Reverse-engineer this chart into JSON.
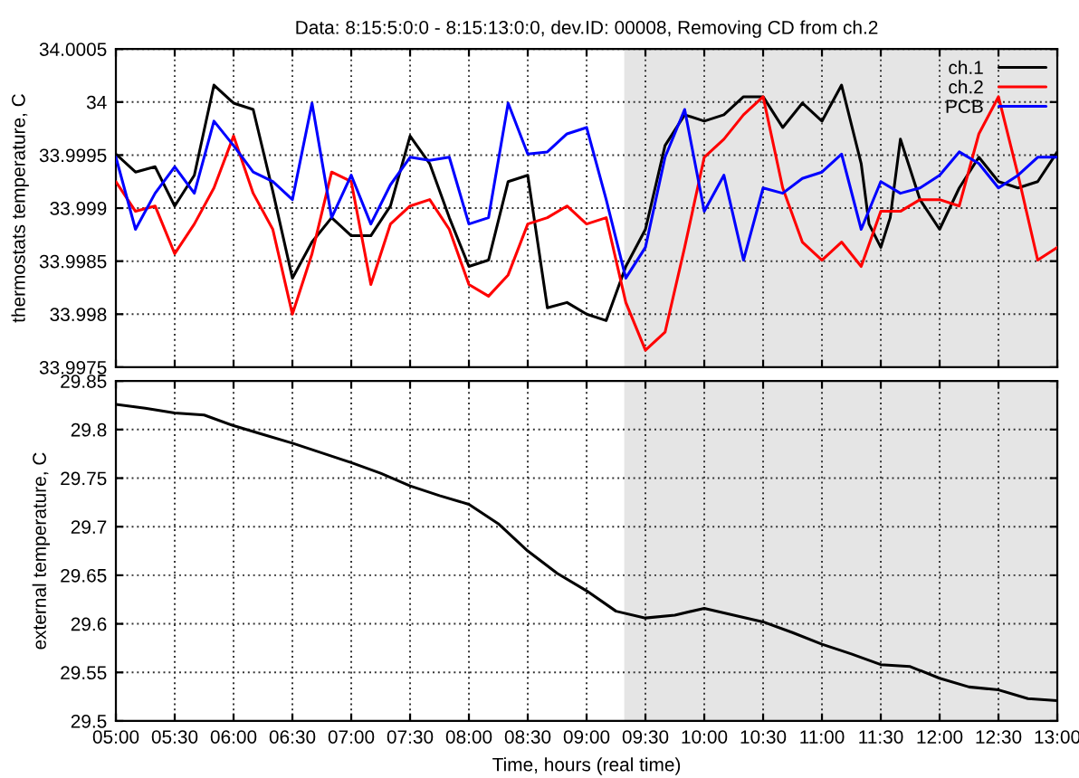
{
  "chart_data": [
    {
      "type": "line",
      "title": "Data: 8:15:5:0:0 - 8:15:13:0:0, dev.ID: 00008, Removing CD from ch.2",
      "ylabel": "thermostats temperature, C",
      "x": [
        5,
        5.16667,
        5.33333,
        5.5,
        5.66667,
        5.83333,
        6,
        6.16667,
        6.33333,
        6.5,
        6.66667,
        6.83333,
        7,
        7.16667,
        7.33333,
        7.5,
        7.66667,
        7.83333,
        8,
        8.16667,
        8.33333,
        8.5,
        8.66667,
        8.83333,
        9,
        9.16667,
        9.33333,
        9.5,
        9.66667,
        9.83333,
        10,
        10.16667,
        10.33333,
        10.5,
        10.66667,
        10.83333,
        11,
        11.16667,
        11.33333,
        11.5,
        11.66667,
        11.83333,
        12,
        12.16667,
        12.33333,
        12.5,
        12.66667,
        12.83333,
        13
      ],
      "series": [
        {
          "name": "ch.1",
          "color": "#000000",
          "x": [
            5,
            5.16667,
            5.33333,
            5.5,
            5.66667,
            5.83333,
            6,
            6.16667,
            6.33333,
            6.5,
            6.66667,
            6.83333,
            7,
            7.16667,
            7.33333,
            7.5,
            7.66667,
            7.83333,
            8,
            8.16667,
            8.33333,
            8.5,
            8.66667,
            8.83333,
            9,
            9.16667,
            9.33333,
            9.5,
            9.66667,
            9.83333,
            10,
            10.16667,
            10.33333,
            10.5,
            10.66667,
            10.83333,
            11,
            11.16667,
            11.33333,
            11.4,
            11.5,
            11.58,
            11.66667,
            11.83333,
            12,
            12.16667,
            12.33333,
            12.5,
            12.66667,
            12.83333,
            13
          ],
          "values": [
            33.99951,
            33.99934,
            33.99939,
            33.99902,
            33.99931,
            34.00016,
            33.99999,
            33.99993,
            33.99916,
            33.99834,
            33.99868,
            33.99891,
            33.99874,
            33.99874,
            33.99902,
            33.99968,
            33.99942,
            33.99891,
            33.99845,
            33.99851,
            33.99925,
            33.99931,
            33.99806,
            33.99811,
            33.998,
            33.99794,
            33.99845,
            33.9988,
            33.99959,
            33.99988,
            33.99982,
            33.99988,
            34.00005,
            34.00005,
            33.99976,
            33.99999,
            33.99982,
            34.00016,
            33.99942,
            33.99885,
            33.99863,
            33.99891,
            33.99965,
            33.99908,
            33.9988,
            33.99919,
            33.99948,
            33.99925,
            33.99919,
            33.99925,
            33.99953
          ]
        },
        {
          "name": "ch.2",
          "color": "#ff0000",
          "values": [
            33.99925,
            33.99897,
            33.99902,
            33.99857,
            33.99885,
            33.99919,
            33.99968,
            33.99914,
            33.9988,
            33.998,
            33.99857,
            33.99934,
            33.99925,
            33.99828,
            33.99885,
            33.99902,
            33.99908,
            33.9988,
            33.99828,
            33.99817,
            33.99837,
            33.99885,
            33.99891,
            33.99902,
            33.99885,
            33.99891,
            33.99811,
            33.99766,
            33.99783,
            33.99863,
            33.99948,
            33.99965,
            33.99988,
            34.00005,
            33.99919,
            33.99868,
            33.99851,
            33.99868,
            33.99845,
            33.99897,
            33.99897,
            33.99908,
            33.99908,
            33.99902,
            33.9997,
            34.00005,
            33.99931,
            33.99851,
            33.99863
          ]
        },
        {
          "name": "PCB",
          "color": "#0000ff",
          "values": [
            33.99948,
            33.9988,
            33.99914,
            33.99939,
            33.99914,
            33.99982,
            33.99959,
            33.99934,
            33.99925,
            33.99908,
            33.99999,
            33.99891,
            33.99931,
            33.99885,
            33.99922,
            33.99948,
            33.99945,
            33.99948,
            33.99885,
            33.99891,
            33.99999,
            33.99951,
            33.99953,
            33.9997,
            33.99976,
            33.99908,
            33.99834,
            33.99863,
            33.99948,
            33.99993,
            33.99897,
            33.99931,
            33.99851,
            33.99919,
            33.99914,
            33.99928,
            33.99934,
            33.99951,
            33.9988,
            33.99925,
            33.99914,
            33.99919,
            33.99931,
            33.99953,
            33.99942,
            33.99919,
            33.99931,
            33.99948,
            33.99948
          ]
        }
      ],
      "xlim": [
        5,
        13
      ],
      "xticks": [
        {
          "value": 5,
          "label": null
        },
        {
          "value": 5.5,
          "label": null
        },
        {
          "value": 6,
          "label": null
        },
        {
          "value": 6.5,
          "label": null
        },
        {
          "value": 7,
          "label": null
        },
        {
          "value": 7.5,
          "label": null
        },
        {
          "value": 8,
          "label": null
        },
        {
          "value": 8.5,
          "label": null
        },
        {
          "value": 9,
          "label": null
        },
        {
          "value": 9.5,
          "label": null
        },
        {
          "value": 10,
          "label": null
        },
        {
          "value": 10.5,
          "label": null
        },
        {
          "value": 11,
          "label": null
        },
        {
          "value": 11.5,
          "label": null
        },
        {
          "value": 12,
          "label": null
        },
        {
          "value": 12.5,
          "label": null
        },
        {
          "value": 13,
          "label": null
        }
      ],
      "ylim": [
        33.9975,
        34.0005
      ],
      "yticks": [
        33.9975,
        33.998,
        33.9985,
        33.999,
        33.9995,
        34,
        34.0005
      ],
      "bands": [
        {
          "axis": "x",
          "from": 9.32,
          "to": 13,
          "color": "#e5e5e5"
        }
      ],
      "tick_labels": "y",
      "grid": true,
      "legend": "top right",
      "line_style": "solid",
      "marker": "none"
    },
    {
      "type": "line",
      "xlabel": "Time, hours (real time)",
      "ylabel": "external temperature, C",
      "x": [
        5,
        5.25,
        5.5,
        5.75,
        6,
        6.25,
        6.5,
        6.75,
        7,
        7.25,
        7.5,
        7.75,
        8,
        8.25,
        8.5,
        8.75,
        9,
        9.25,
        9.5,
        9.75,
        10,
        10.25,
        10.5,
        10.75,
        11,
        11.25,
        11.5,
        11.75,
        12,
        12.25,
        12.5,
        12.75,
        13
      ],
      "series": [
        {
          "color": "#000000",
          "values": [
            29.826,
            29.822,
            29.817,
            29.815,
            29.804,
            29.795,
            29.786,
            29.776,
            29.766,
            29.755,
            29.742,
            29.732,
            29.723,
            29.703,
            29.675,
            29.652,
            29.634,
            29.613,
            29.606,
            29.609,
            29.616,
            29.609,
            29.602,
            29.591,
            29.579,
            29.569,
            29.558,
            29.556,
            29.544,
            29.535,
            29.532,
            29.523,
            29.521
          ]
        }
      ],
      "xlim": [
        5,
        13
      ],
      "xticks": [
        {
          "value": 5,
          "label": "05:00"
        },
        {
          "value": 5.5,
          "label": "05:30"
        },
        {
          "value": 6,
          "label": "06:00"
        },
        {
          "value": 6.5,
          "label": "06:30"
        },
        {
          "value": 7,
          "label": "07:00"
        },
        {
          "value": 7.5,
          "label": "07:30"
        },
        {
          "value": 8,
          "label": "08:00"
        },
        {
          "value": 8.5,
          "label": "08:30"
        },
        {
          "value": 9,
          "label": "09:00"
        },
        {
          "value": 9.5,
          "label": "09:30"
        },
        {
          "value": 10,
          "label": "10:00"
        },
        {
          "value": 10.5,
          "label": "10:30"
        },
        {
          "value": 11,
          "label": "11:00"
        },
        {
          "value": 11.5,
          "label": "11:30"
        },
        {
          "value": 12,
          "label": "12:00"
        },
        {
          "value": 12.5,
          "label": "12:30"
        },
        {
          "value": 13,
          "label": "13:00"
        }
      ],
      "ylim": [
        29.5,
        29.85
      ],
      "yticks": [
        29.5,
        29.55,
        29.6,
        29.65,
        29.7,
        29.75,
        29.8,
        29.85
      ],
      "bands": [
        {
          "axis": "x",
          "from": 9.32,
          "to": 13,
          "color": "#e5e5e5"
        }
      ],
      "grid": true,
      "line_style": "solid",
      "marker": "none"
    }
  ]
}
